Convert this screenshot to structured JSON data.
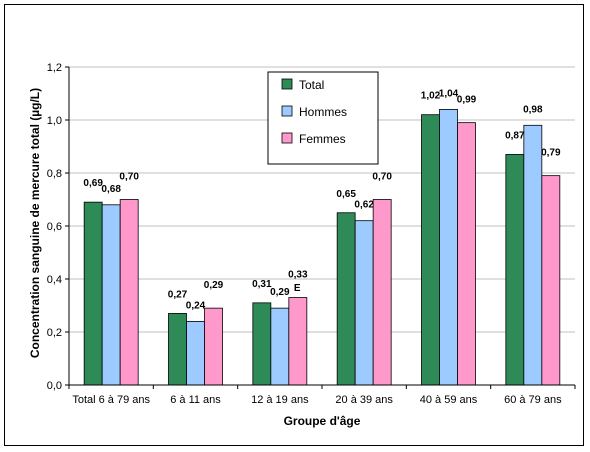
{
  "chart_data": {
    "type": "bar",
    "title": "",
    "xlabel": "Groupe d'âge",
    "ylabel": "Concentration sanguine de mercure total (µg/L)",
    "ylim": [
      0,
      1.2
    ],
    "yticks": [
      "0,0",
      "0,2",
      "0,4",
      "0,6",
      "0,8",
      "1,0",
      "1,2"
    ],
    "grid": true,
    "legend_position": "top-center",
    "categories": [
      "Total 6 à 79 ans",
      "6 à 11 ans",
      "12 à 19 ans",
      "20 à 39 ans",
      "40 à 59 ans",
      "60 à 79 ans"
    ],
    "series": [
      {
        "name": "Total",
        "color": "#2e8b57",
        "values": [
          0.69,
          0.27,
          0.31,
          0.65,
          1.02,
          0.87
        ],
        "labels": [
          "0,69",
          "0,27",
          "0,31",
          "0,65",
          "1,02",
          "0,87"
        ]
      },
      {
        "name": "Hommes",
        "color": "#9ecbff",
        "values": [
          0.68,
          0.24,
          0.29,
          0.62,
          1.04,
          0.98
        ],
        "labels": [
          "0,68",
          "0,24",
          "0,29",
          "0,62",
          "1,04",
          "0,98"
        ]
      },
      {
        "name": "Femmes",
        "color": "#ff99cc",
        "values": [
          0.7,
          0.29,
          0.33,
          0.7,
          0.99,
          0.79
        ],
        "labels": [
          "0,70",
          "0,29",
          "0,33",
          "0,70",
          "0,99",
          "0,79"
        ]
      }
    ],
    "annotations": [
      {
        "category_index": 2,
        "series_index": 1,
        "text": "E"
      }
    ]
  }
}
